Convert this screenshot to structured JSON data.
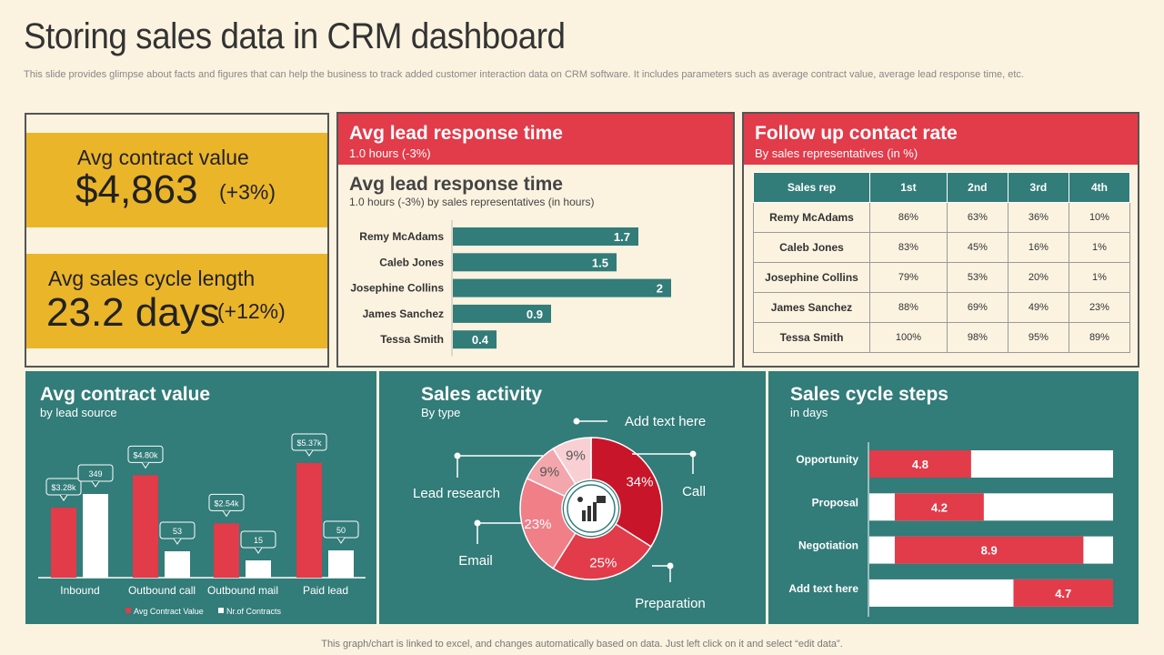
{
  "title": "Storing sales data in CRM dashboard",
  "subtitle": "This slide provides glimpse about facts and figures that can help the business to track added customer interaction data on CRM software. It includes parameters such as average contract value, average lead response time, etc.",
  "footer": "This graph/chart is linked to excel, and changes automatically based on data. Just left click on it and select “edit data”.",
  "colors": {
    "red": "#e23b4a",
    "teal": "#327c79",
    "yellow": "#ebb52a",
    "cream": "#fbf3e0"
  },
  "kpis": {
    "contract": {
      "label": "Avg contract value",
      "value": "$4,863",
      "change": "(+3%)"
    },
    "cycle": {
      "label": "Avg sales cycle length",
      "value": "23.2 days",
      "change": "(+12%)"
    }
  },
  "lead_panel": {
    "title": "Avg lead response time",
    "subtitle": "1.0 hours (-3%)",
    "inner_title": "Avg lead response time",
    "inner_subtitle": "1.0 hours (-3%) by sales representatives (in hours)"
  },
  "follow_panel": {
    "title": "Follow  up contact rate",
    "subtitle": "By sales representatives  (in %)",
    "headers": [
      "Sales rep",
      "1st",
      "2nd",
      "3rd",
      "4th"
    ],
    "rows": [
      [
        "Remy McAdams",
        "86%",
        "63%",
        "36%",
        "10%"
      ],
      [
        "Caleb Jones",
        "83%",
        "45%",
        "16%",
        "1%"
      ],
      [
        "Josephine Collins",
        "79%",
        "53%",
        "20%",
        "1%"
      ],
      [
        "James Sanchez",
        "88%",
        "69%",
        "49%",
        "23%"
      ],
      [
        "Tessa Smith",
        "100%",
        "98%",
        "95%",
        "89%"
      ]
    ]
  },
  "contract_panel": {
    "title": "Avg contract value",
    "subtitle": "by lead source"
  },
  "activity_panel": {
    "title": "Sales activity",
    "subtitle": "By type",
    "icon": "business-chart-icon"
  },
  "cycle_panel": {
    "title": "Sales cycle steps",
    "subtitle": "in days"
  },
  "chart_data": [
    {
      "type": "bar",
      "orientation": "horizontal",
      "title": "Avg lead response time",
      "categories": [
        "Remy McAdams",
        "Caleb Jones",
        "Josephine Collins",
        "James Sanchez",
        "Tessa Smith"
      ],
      "values": [
        1.7,
        1.5,
        2,
        0.9,
        0.4
      ],
      "labels": [
        "1.7",
        "1.5",
        "2",
        "0.9",
        "0.4"
      ],
      "xlim": [
        0,
        2
      ]
    },
    {
      "type": "bar",
      "title": "Avg contract value",
      "categories": [
        "Inbound",
        "Outbound call",
        "Outbound mail",
        "Paid lead"
      ],
      "series": [
        {
          "name": "Avg Contract Value",
          "values": [
            3280,
            4800,
            2540,
            5370
          ],
          "labels": [
            "$3.28k",
            "$4.80k",
            "$2.54k",
            "$5.37k"
          ]
        },
        {
          "name": "Nr.of Contracts",
          "values": [
            349,
            53,
            15,
            50
          ],
          "labels": [
            "349",
            "53",
            "15",
            "50"
          ]
        }
      ],
      "legend": "bottom"
    },
    {
      "type": "pie",
      "title": "Sales activity",
      "slices": [
        {
          "label": "Call",
          "value": 34,
          "text": "34%"
        },
        {
          "label": "Preparation",
          "value": 25,
          "text": "25%"
        },
        {
          "label": "Email",
          "value": 23,
          "text": "23%"
        },
        {
          "label": "Lead research",
          "value": 9,
          "text": "9%"
        },
        {
          "label": "Add text here",
          "value": 9,
          "text": "9%"
        }
      ]
    },
    {
      "type": "bar",
      "orientation": "horizontal",
      "stacked": true,
      "title": "Sales cycle steps",
      "categories": [
        "Opportunity",
        "Proposal",
        "Negotiation",
        "Add text here"
      ],
      "offsets": [
        0,
        1.2,
        1.2,
        6.8
      ],
      "values": [
        4.8,
        4.2,
        8.9,
        4.7
      ],
      "labels": [
        "4.8",
        "4.2",
        "8.9",
        "4.7"
      ],
      "xlim": [
        0,
        11.5
      ]
    }
  ]
}
